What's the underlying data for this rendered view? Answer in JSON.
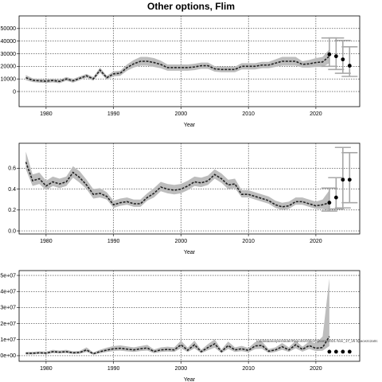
{
  "title": "Other options, Flim",
  "annotation": "/dd/dataanalysisfolder/Reports/OtherOptions/2021 Nov_17_v5 Space2c2a0c",
  "colors": {
    "band": "#bdbdbd",
    "line": "#222222",
    "errorbar": "#a8a8a8",
    "grid": "#000000"
  },
  "chart_data": [
    {
      "type": "line",
      "title": "",
      "xlabel": "Year",
      "ylabel": "",
      "xlim": [
        1976,
        2026.5
      ],
      "ylim": [
        -12000,
        60000
      ],
      "grid": true,
      "x_ticks": [
        1980,
        1990,
        2000,
        2010,
        2020
      ],
      "y_ticks": [
        0,
        10000,
        20000,
        30000,
        40000,
        50000
      ],
      "y_tick_labels": [
        "0",
        "10000",
        "20000",
        "30000",
        "40000",
        "50000"
      ],
      "x": [
        1977,
        1978,
        1979,
        1980,
        1981,
        1982,
        1983,
        1984,
        1985,
        1986,
        1987,
        1988,
        1989,
        1990,
        1991,
        1992,
        1993,
        1994,
        1995,
        1996,
        1997,
        1998,
        1999,
        2000,
        2001,
        2002,
        2003,
        2004,
        2005,
        2006,
        2007,
        2008,
        2009,
        2010,
        2011,
        2012,
        2013,
        2014,
        2015,
        2016,
        2017,
        2018,
        2019,
        2020,
        2021,
        2022
      ],
      "series": [
        {
          "values": [
            11000,
            9000,
            8500,
            8200,
            8800,
            8000,
            10000,
            8500,
            10500,
            12500,
            10000,
            17000,
            11000,
            14000,
            14500,
            19000,
            22000,
            24000,
            24000,
            23000,
            21500,
            19000,
            19000,
            19000,
            19000,
            19500,
            20500,
            20500,
            18000,
            17500,
            17500,
            17500,
            20000,
            20000,
            20000,
            21000,
            21000,
            22500,
            24000,
            24000,
            24000,
            21500,
            22000,
            23000,
            23500,
            28000
          ],
          "lower": [
            9000,
            7500,
            7000,
            6800,
            7300,
            6600,
            8500,
            7000,
            9000,
            11000,
            8500,
            15000,
            9500,
            12000,
            12500,
            16500,
            19000,
            20500,
            20500,
            19500,
            18500,
            16500,
            16500,
            16500,
            16500,
            17000,
            18000,
            18000,
            15800,
            15300,
            15300,
            15300,
            17500,
            17500,
            17500,
            18500,
            18500,
            19500,
            20500,
            20500,
            20500,
            19000,
            19000,
            19500,
            19500,
            22500
          ],
          "upper": [
            13000,
            10500,
            10000,
            9700,
            10300,
            9400,
            11500,
            10000,
            12000,
            14000,
            11500,
            19000,
            12500,
            16000,
            16500,
            21500,
            25000,
            27500,
            27500,
            26500,
            24500,
            21500,
            21500,
            21500,
            21500,
            22000,
            23000,
            23000,
            20200,
            19700,
            19700,
            19700,
            22500,
            22500,
            22500,
            23500,
            23500,
            25500,
            27500,
            27500,
            27500,
            24000,
            25000,
            26500,
            27500,
            33500
          ]
        }
      ],
      "projections": [
        {
          "x": 2022,
          "y": 29500,
          "low": 20000,
          "high": 42500
        },
        {
          "x": 2023,
          "y": 28000,
          "low": 17500,
          "high": 42500
        },
        {
          "x": 2024,
          "y": 25500,
          "low": 14500,
          "high": 40500
        },
        {
          "x": 2025,
          "y": 20500,
          "low": 12000,
          "high": 35500
        }
      ]
    },
    {
      "type": "line",
      "title": "",
      "xlabel": "Year",
      "ylabel": "",
      "xlim": [
        1976,
        2026.5
      ],
      "ylim": [
        -0.03,
        0.84
      ],
      "grid": true,
      "x_ticks": [
        1980,
        1990,
        2000,
        2010,
        2020
      ],
      "y_ticks": [
        0.0,
        0.2,
        0.4,
        0.6
      ],
      "y_tick_labels": [
        "0.0",
        "0.2",
        "0.4",
        "0.6"
      ],
      "x": [
        1977,
        1978,
        1979,
        1980,
        1981,
        1982,
        1983,
        1984,
        1985,
        1986,
        1987,
        1988,
        1989,
        1990,
        1991,
        1992,
        1993,
        1994,
        1995,
        1996,
        1997,
        1998,
        1999,
        2000,
        2001,
        2002,
        2003,
        2004,
        2005,
        2006,
        2007,
        2008,
        2009,
        2010,
        2011,
        2012,
        2013,
        2014,
        2015,
        2016,
        2017,
        2018,
        2019,
        2020,
        2021,
        2022
      ],
      "series": [
        {
          "values": [
            0.66,
            0.48,
            0.5,
            0.43,
            0.47,
            0.45,
            0.47,
            0.56,
            0.51,
            0.44,
            0.35,
            0.36,
            0.33,
            0.25,
            0.27,
            0.28,
            0.26,
            0.26,
            0.32,
            0.36,
            0.42,
            0.4,
            0.39,
            0.4,
            0.43,
            0.47,
            0.46,
            0.48,
            0.54,
            0.5,
            0.44,
            0.45,
            0.35,
            0.35,
            0.33,
            0.31,
            0.29,
            0.25,
            0.23,
            0.24,
            0.28,
            0.28,
            0.26,
            0.24,
            0.25,
            0.27
          ],
          "lower": [
            0.59,
            0.43,
            0.45,
            0.39,
            0.43,
            0.41,
            0.43,
            0.51,
            0.46,
            0.4,
            0.31,
            0.32,
            0.3,
            0.22,
            0.24,
            0.25,
            0.23,
            0.23,
            0.29,
            0.32,
            0.38,
            0.36,
            0.35,
            0.36,
            0.39,
            0.43,
            0.42,
            0.44,
            0.5,
            0.46,
            0.4,
            0.41,
            0.32,
            0.32,
            0.3,
            0.28,
            0.26,
            0.22,
            0.2,
            0.21,
            0.25,
            0.25,
            0.23,
            0.21,
            0.21,
            0.19
          ],
          "upper": [
            0.76,
            0.54,
            0.56,
            0.48,
            0.52,
            0.5,
            0.52,
            0.62,
            0.57,
            0.49,
            0.4,
            0.41,
            0.37,
            0.29,
            0.31,
            0.32,
            0.3,
            0.3,
            0.36,
            0.41,
            0.47,
            0.45,
            0.44,
            0.45,
            0.48,
            0.52,
            0.51,
            0.53,
            0.59,
            0.55,
            0.49,
            0.5,
            0.39,
            0.39,
            0.37,
            0.35,
            0.33,
            0.29,
            0.27,
            0.28,
            0.32,
            0.32,
            0.3,
            0.28,
            0.3,
            0.39
          ]
        }
      ],
      "projections": [
        {
          "x": 2022,
          "y": 0.27,
          "low": 0.19,
          "high": 0.41
        },
        {
          "x": 2023,
          "y": 0.32,
          "low": 0.21,
          "high": 0.51
        },
        {
          "x": 2024,
          "y": 0.49,
          "low": 0.22,
          "high": 0.8
        },
        {
          "x": 2025,
          "y": 0.49,
          "low": 0.27,
          "high": 0.75
        }
      ]
    },
    {
      "type": "line",
      "title": "",
      "xlabel": "Year",
      "ylabel": "",
      "xlim": [
        1976,
        2026.5
      ],
      "ylim": [
        -3500000,
        53000000
      ],
      "grid": true,
      "x_ticks": [
        1980,
        1990,
        2000,
        2010,
        2020
      ],
      "y_ticks": [
        0,
        10000000,
        20000000,
        30000000,
        40000000,
        50000000
      ],
      "y_tick_labels": [
        "0e+00",
        "1e+07",
        "2e+07",
        "3e+07",
        "4e+07",
        "5e+07"
      ],
      "x": [
        1977,
        1978,
        1979,
        1980,
        1981,
        1982,
        1983,
        1984,
        1985,
        1986,
        1987,
        1988,
        1989,
        1990,
        1991,
        1992,
        1993,
        1994,
        1995,
        1996,
        1997,
        1998,
        1999,
        2000,
        2001,
        2002,
        2003,
        2004,
        2005,
        2006,
        2007,
        2008,
        2009,
        2010,
        2011,
        2012,
        2013,
        2014,
        2015,
        2016,
        2017,
        2018,
        2019,
        2020,
        2021,
        2022
      ],
      "series": [
        {
          "values": [
            1500000,
            1500000,
            1800000,
            1600000,
            2500000,
            2200000,
            2500000,
            1800000,
            2000000,
            3600000,
            1200000,
            2500000,
            3500000,
            4300000,
            4600000,
            4100000,
            3600000,
            4300000,
            4800000,
            2600000,
            3600000,
            3900000,
            3600000,
            6800000,
            3400000,
            6800000,
            2500000,
            5100000,
            7400000,
            2600000,
            6300000,
            3600000,
            4300000,
            3300000,
            6100000,
            6400000,
            2800000,
            3600000,
            5600000,
            3600000,
            6800000,
            3900000,
            6300000,
            4600000,
            5100000,
            12000000
          ],
          "lower": [
            800000,
            800000,
            1100000,
            900000,
            1600000,
            1400000,
            1600000,
            1100000,
            1200000,
            2300000,
            600000,
            1500000,
            2300000,
            2900000,
            3100000,
            2700000,
            2300000,
            2900000,
            3200000,
            1600000,
            2300000,
            2600000,
            2300000,
            4600000,
            2200000,
            4600000,
            1500000,
            3400000,
            5000000,
            1600000,
            4200000,
            2300000,
            2800000,
            2100000,
            4100000,
            4300000,
            1700000,
            2300000,
            3700000,
            2300000,
            4600000,
            2500000,
            4200000,
            2900000,
            3100000,
            6000000
          ],
          "upper": [
            2400000,
            2400000,
            2700000,
            2500000,
            3600000,
            3200000,
            3600000,
            2700000,
            3000000,
            5200000,
            2000000,
            3700000,
            5000000,
            6000000,
            6400000,
            5800000,
            5200000,
            6000000,
            6700000,
            3900000,
            5200000,
            5600000,
            5200000,
            9400000,
            5000000,
            9400000,
            3700000,
            7200000,
            10200000,
            3900000,
            8800000,
            5200000,
            6100000,
            4800000,
            8500000,
            8900000,
            4100000,
            5200000,
            7900000,
            5200000,
            9400000,
            5600000,
            8800000,
            7800000,
            12000000,
            48000000
          ]
        }
      ],
      "projections": [
        {
          "x": 2022,
          "y": 2500000
        },
        {
          "x": 2023,
          "y": 2500000
        },
        {
          "x": 2024,
          "y": 2500000
        },
        {
          "x": 2025,
          "y": 2500000
        }
      ]
    }
  ]
}
